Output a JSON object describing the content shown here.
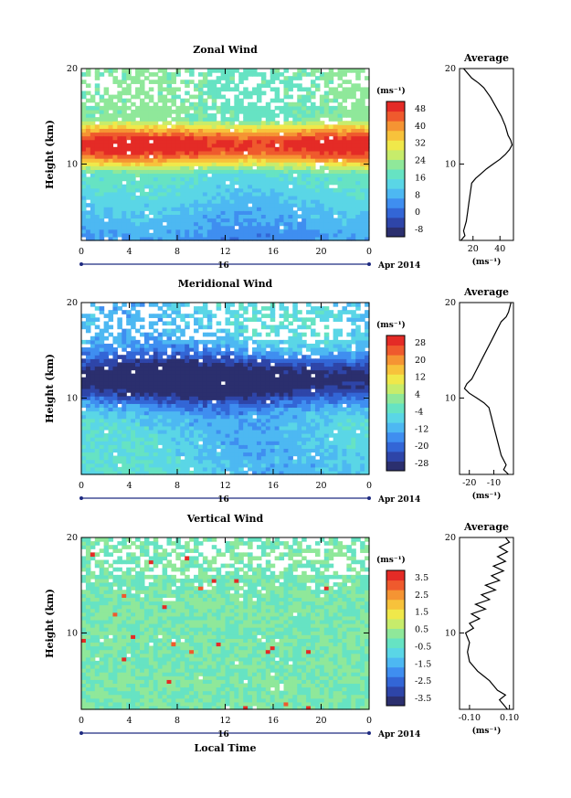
{
  "chart_data": [
    {
      "type": "heatmap",
      "title": "Zonal Wind",
      "ylabel": "Height (km)",
      "yticks": [
        "20",
        "10"
      ],
      "xticks": [
        "0",
        "4",
        "8",
        "12",
        "16",
        "20",
        "0"
      ],
      "xlim": [
        0,
        24
      ],
      "ylim": [
        2,
        20
      ],
      "date_label": "16",
      "date_suffix": "Apr 2014",
      "colorbar_unit": "(ms⁻¹)",
      "colorbar_ticks": [
        "48",
        "40",
        "32",
        "24",
        "16",
        "8",
        "0",
        "-8"
      ],
      "colorbar_range": [
        -8,
        52
      ],
      "field": "zonal",
      "average": {
        "title": "Average",
        "xlim": [
          10,
          50
        ],
        "xticks": [
          "20",
          "40"
        ],
        "xlabel": "(ms⁻¹)",
        "yticks": [
          "20",
          "10"
        ],
        "profile": [
          [
            11,
            2
          ],
          [
            14,
            2.5
          ],
          [
            13,
            3
          ],
          [
            15,
            4
          ],
          [
            16,
            5
          ],
          [
            17,
            6
          ],
          [
            18,
            7
          ],
          [
            19,
            8
          ],
          [
            22,
            8.5
          ],
          [
            26,
            9
          ],
          [
            30,
            9.5
          ],
          [
            35,
            10
          ],
          [
            40,
            10.5
          ],
          [
            44,
            11
          ],
          [
            47,
            11.5
          ],
          [
            49,
            12
          ],
          [
            48,
            12.5
          ],
          [
            46,
            13
          ],
          [
            44,
            14
          ],
          [
            41,
            15
          ],
          [
            37,
            16
          ],
          [
            33,
            17
          ],
          [
            28,
            18
          ],
          [
            24,
            18.5
          ],
          [
            19,
            19
          ],
          [
            16,
            19.5
          ],
          [
            13,
            20
          ]
        ]
      }
    },
    {
      "type": "heatmap",
      "title": "Meridional Wind",
      "ylabel": "Height (km)",
      "yticks": [
        "20",
        "10"
      ],
      "xticks": [
        "0",
        "4",
        "8",
        "12",
        "16",
        "20",
        "0"
      ],
      "xlim": [
        0,
        24
      ],
      "ylim": [
        2,
        20
      ],
      "date_label": "16",
      "date_suffix": "Apr 2014",
      "colorbar_unit": "(ms⁻¹)",
      "colorbar_ticks": [
        "28",
        "20",
        "12",
        "4",
        "-4",
        "-12",
        "-20",
        "-28"
      ],
      "colorbar_range": [
        -32,
        32
      ],
      "field": "meridional",
      "average": {
        "title": "Average",
        "xlim": [
          -24,
          -2
        ],
        "xticks": [
          "-20",
          "-10"
        ],
        "xlabel": "(ms⁻¹)",
        "yticks": [
          "20",
          "10"
        ],
        "profile": [
          [
            -4,
            2
          ],
          [
            -6,
            2.5
          ],
          [
            -5,
            3
          ],
          [
            -7,
            4
          ],
          [
            -8,
            5
          ],
          [
            -9,
            6
          ],
          [
            -10,
            7
          ],
          [
            -11,
            8
          ],
          [
            -12,
            9
          ],
          [
            -14,
            9.5
          ],
          [
            -17,
            10
          ],
          [
            -20,
            10.5
          ],
          [
            -22,
            11
          ],
          [
            -21,
            11.5
          ],
          [
            -19,
            12
          ],
          [
            -17,
            13
          ],
          [
            -15,
            14
          ],
          [
            -13,
            15
          ],
          [
            -11,
            16
          ],
          [
            -9,
            17
          ],
          [
            -7,
            18
          ],
          [
            -5,
            18.5
          ],
          [
            -4,
            19
          ],
          [
            -3,
            20
          ]
        ]
      }
    },
    {
      "type": "heatmap",
      "title": "Vertical Wind",
      "ylabel": "Height (km)",
      "yticks": [
        "20",
        "10"
      ],
      "xticks": [
        "0",
        "4",
        "8",
        "12",
        "16",
        "20",
        "0"
      ],
      "xlim": [
        0,
        24
      ],
      "ylim": [
        2,
        20
      ],
      "date_label": "16",
      "date_suffix": "Apr 2014",
      "xlabel": "Local Time",
      "colorbar_unit": "(ms⁻¹)",
      "colorbar_ticks": [
        "3.5",
        "2.5",
        "1.5",
        "0.5",
        "-0.5",
        "-1.5",
        "-2.5",
        "-3.5"
      ],
      "colorbar_range": [
        -4,
        4
      ],
      "field": "vertical",
      "average": {
        "title": "Average",
        "xlim": [
          -0.15,
          0.12
        ],
        "xticks": [
          "-0.10",
          "0.10"
        ],
        "xlabel": "(ms⁻¹)",
        "yticks": [
          "20",
          "10"
        ],
        "profile": [
          [
            0.09,
            2
          ],
          [
            0.07,
            2.5
          ],
          [
            0.05,
            3
          ],
          [
            0.08,
            3.5
          ],
          [
            0.04,
            4
          ],
          [
            0.02,
            4.5
          ],
          [
            0,
            5
          ],
          [
            -0.03,
            5.5
          ],
          [
            -0.06,
            6
          ],
          [
            -0.08,
            6.5
          ],
          [
            -0.1,
            7
          ],
          [
            -0.11,
            8
          ],
          [
            -0.1,
            9
          ],
          [
            -0.12,
            10
          ],
          [
            -0.08,
            10.5
          ],
          [
            -0.1,
            11
          ],
          [
            -0.05,
            11.5
          ],
          [
            -0.09,
            12
          ],
          [
            -0.02,
            12.5
          ],
          [
            -0.07,
            13
          ],
          [
            0,
            13.5
          ],
          [
            -0.04,
            14
          ],
          [
            0.03,
            14.5
          ],
          [
            -0.02,
            15
          ],
          [
            0.05,
            15.5
          ],
          [
            0.01,
            16
          ],
          [
            0.07,
            16.5
          ],
          [
            0.02,
            17
          ],
          [
            0.08,
            17.5
          ],
          [
            0.04,
            18
          ],
          [
            0.09,
            18.5
          ],
          [
            0.05,
            19
          ],
          [
            0.1,
            19.5
          ],
          [
            0.08,
            20
          ]
        ]
      }
    }
  ]
}
